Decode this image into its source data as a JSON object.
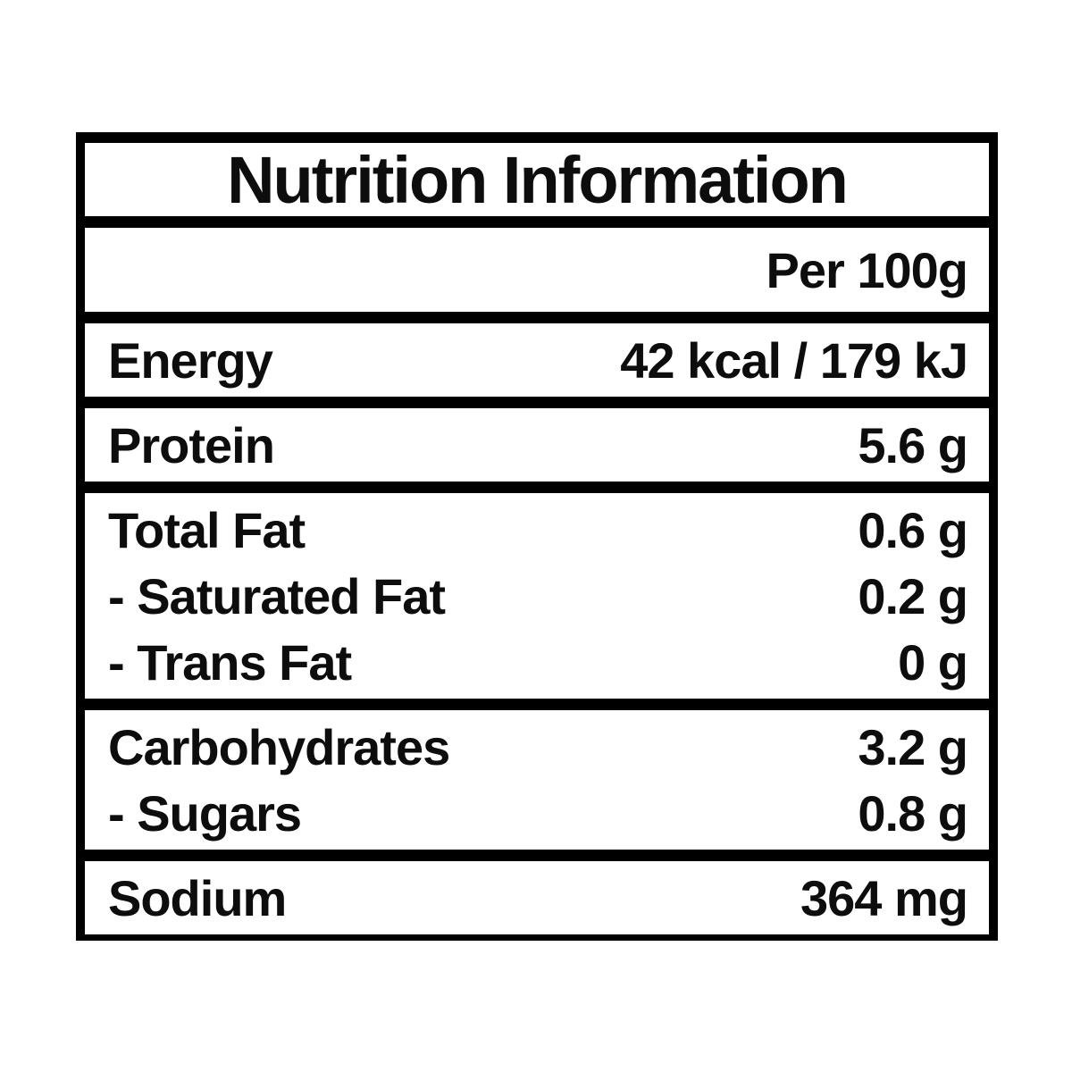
{
  "label": {
    "title": "Nutrition Information",
    "column_header": "Per 100g",
    "sections": [
      {
        "rows": [
          {
            "name": "Energy",
            "value": "42 kcal / 179 kJ"
          }
        ]
      },
      {
        "rows": [
          {
            "name": "Protein",
            "value": "5.6 g"
          }
        ]
      },
      {
        "rows": [
          {
            "name": "Total Fat",
            "value": "0.6 g"
          },
          {
            "name": "- Saturated Fat",
            "value": "0.2 g"
          },
          {
            "name": "- Trans Fat",
            "value": "0 g"
          }
        ]
      },
      {
        "rows": [
          {
            "name": "Carbohydrates",
            "value": "3.2 g"
          },
          {
            "name": "- Sugars",
            "value": "0.8 g"
          }
        ]
      },
      {
        "rows": [
          {
            "name": "Sodium",
            "value": "364 mg"
          }
        ]
      }
    ],
    "colors": {
      "border": "#000000",
      "text": "#0d0d0d",
      "background": "#ffffff"
    }
  }
}
